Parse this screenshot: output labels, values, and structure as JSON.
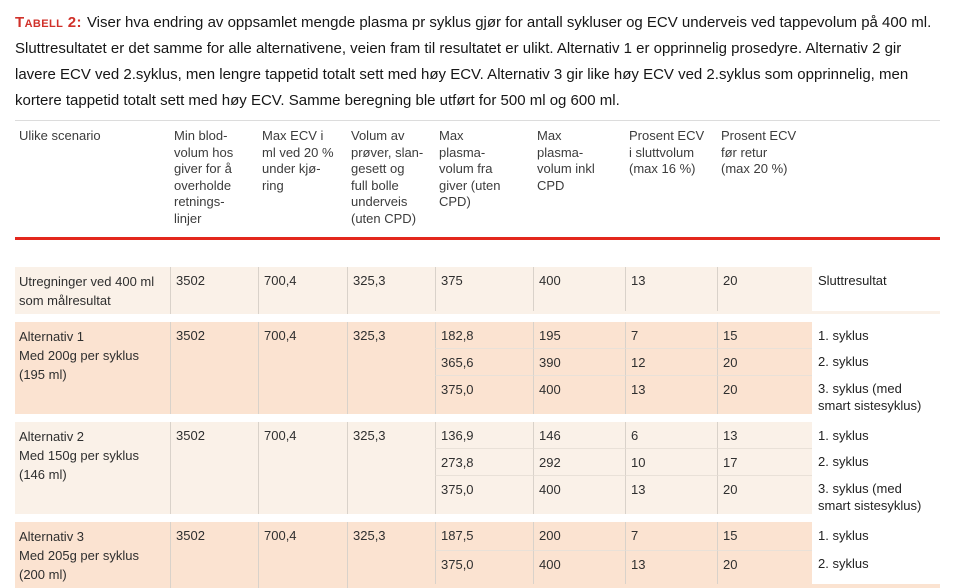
{
  "caption": {
    "label": "Tabell 2:",
    "text": "Viser hva endring av oppsamlet mengde plasma pr syklus gjør for antall sykluser og ECV underveis ved tappevolum på 400 ml. Slutt­resultatet er det samme for alle alternativene, veien fram til resultatet er ulikt. Alternativ 1 er opprinnelig prosedyre. Alternativ 2 gir lavere ECV ved 2.syklus, men lengre tappetid totalt sett med høy ECV. Alternativ 3 gir like høy ECV ved 2.syklus som opprinnelig, men kortere tappetid totalt sett med høy ECV. Samme beregning ble utført for 500 ml og 600 ml."
  },
  "table": {
    "headers": [
      "Ulike scenario",
      [
        "Min blod-",
        "volum hos",
        "giver for å",
        "overholde",
        "retnings-",
        "linjer"
      ],
      [
        "Max ECV i",
        "ml ved 20 %",
        "under kjø-",
        "ring"
      ],
      [
        "Volum av",
        "prøver, slan-",
        "gesett og",
        "full bolle",
        "underveis",
        "(uten CPD)"
      ],
      [
        "Max",
        "plasma-",
        "volum fra",
        "giver (uten",
        "CPD)"
      ],
      [
        "Max",
        "plasma-",
        "volum inkl",
        "CPD"
      ],
      [
        "Prosent ECV",
        "i sluttvolum",
        "(max 16 %)"
      ],
      [
        "Prosent ECV",
        "før retur",
        "(max 20 %)"
      ],
      ""
    ],
    "blocks": [
      {
        "scenario": [
          "Utregninger ved 400 ml",
          "som målresultat"
        ],
        "shared": [
          "3502",
          "700,4",
          "325,3"
        ],
        "rows": [
          {
            "values": [
              "375",
              "400",
              "13",
              "20"
            ],
            "label": "Sluttresultat"
          }
        ]
      },
      {
        "scenario": [
          "Alternativ 1",
          "Med 200g per syklus",
          "(195 ml)"
        ],
        "shared": [
          "3502",
          "700,4",
          "325,3"
        ],
        "rows": [
          {
            "values": [
              "182,8",
              "195",
              "7",
              "15"
            ],
            "label": "1. syklus"
          },
          {
            "values": [
              "365,6",
              "390",
              "12",
              "20"
            ],
            "label": "2. syklus"
          },
          {
            "values": [
              "375,0",
              "400",
              "13",
              "20"
            ],
            "label": [
              "3. syklus (med",
              "smart sistesyklus)"
            ]
          }
        ]
      },
      {
        "scenario": [
          "Alternativ 2",
          "Med 150g per syklus",
          "(146 ml)"
        ],
        "shared": [
          "3502",
          "700,4",
          "325,3"
        ],
        "rows": [
          {
            "values": [
              "136,9",
              "146",
              "6",
              "13"
            ],
            "label": "1. syklus"
          },
          {
            "values": [
              "273,8",
              "292",
              "10",
              "17"
            ],
            "label": "2. syklus"
          },
          {
            "values": [
              "375,0",
              "400",
              "13",
              "20"
            ],
            "label": [
              "3. syklus (med",
              "smart sistesyklus)"
            ]
          }
        ]
      },
      {
        "scenario": [
          "Alternativ 3",
          "Med 205g per syklus",
          "(200 ml)"
        ],
        "shared": [
          "3502",
          "700,4",
          "325,3"
        ],
        "rows": [
          {
            "values": [
              "187,5",
              "200",
              "7",
              "15"
            ],
            "label": "1. syklus"
          },
          {
            "values": [
              "375,0",
              "400",
              "13",
              "20"
            ],
            "label": "2. syklus"
          }
        ]
      }
    ]
  },
  "colors": {
    "caption_label_red": "#d0312a",
    "header_rule_red": "#e3271d",
    "header_top_rule_gray": "#dcdcdc",
    "row_light": "#faf1e8",
    "row_dark": "#fbe3d1",
    "separator": "#d9d2ca",
    "bottom_rule_dark_red": "#9e1b13"
  }
}
